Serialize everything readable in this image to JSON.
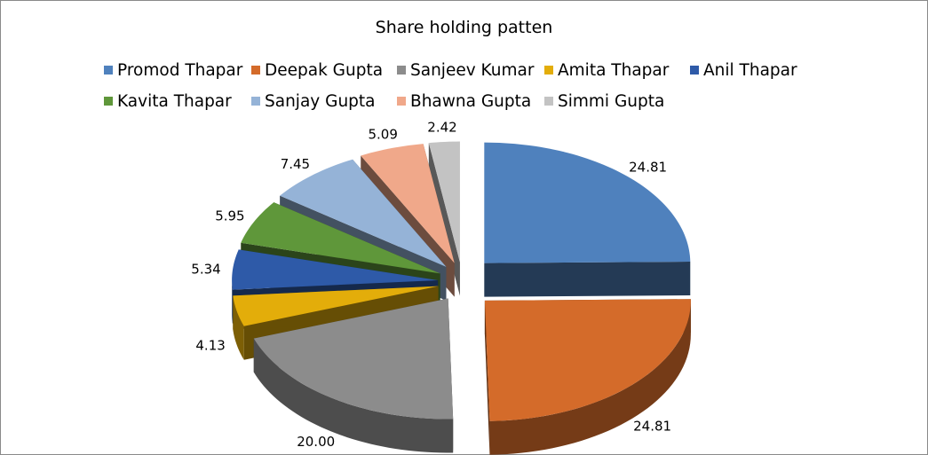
{
  "chart_data": {
    "type": "pie",
    "title": "Share holding patten",
    "legend_position": "top",
    "series": [
      {
        "name": "Promod Thapar",
        "value": 24.81,
        "label": "24.81",
        "color": "#4f81bd"
      },
      {
        "name": "Deepak Gupta",
        "value": 24.81,
        "label": "24.81",
        "color": "#d46b2a"
      },
      {
        "name": "Sanjeev Kumar",
        "value": 20.0,
        "label": "20.00",
        "color": "#8c8c8c"
      },
      {
        "name": "Amita Thapar",
        "value": 4.13,
        "label": "4.13",
        "color": "#e3ad0a"
      },
      {
        "name": "Anil Thapar",
        "value": 5.34,
        "label": "5.34",
        "color": "#2e5aa8"
      },
      {
        "name": "Kavita Thapar",
        "value": 5.95,
        "label": "5.95",
        "color": "#5f973a"
      },
      {
        "name": "Sanjay Gupta",
        "value": 7.45,
        "label": "7.45",
        "color": "#95b3d7"
      },
      {
        "name": "Bhawna Gupta",
        "value": 5.09,
        "label": "5.09",
        "color": "#f0a88a"
      },
      {
        "name": "Simmi Gupta",
        "value": 2.42,
        "label": "2.42",
        "color": "#c3c3c3"
      }
    ]
  }
}
